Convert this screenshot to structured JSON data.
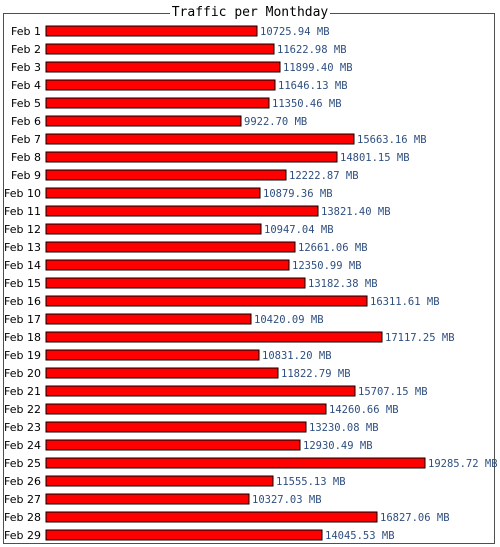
{
  "chart_data": {
    "type": "bar",
    "orientation": "horizontal",
    "title": "Traffic per Monthday",
    "unit": "MB",
    "categories": [
      "Feb 1",
      "Feb 2",
      "Feb 3",
      "Feb 4",
      "Feb 5",
      "Feb 6",
      "Feb 7",
      "Feb 8",
      "Feb 9",
      "Feb 10",
      "Feb 11",
      "Feb 12",
      "Feb 13",
      "Feb 14",
      "Feb 15",
      "Feb 16",
      "Feb 17",
      "Feb 18",
      "Feb 19",
      "Feb 20",
      "Feb 21",
      "Feb 22",
      "Feb 23",
      "Feb 24",
      "Feb 25",
      "Feb 26",
      "Feb 27",
      "Feb 28",
      "Feb 29"
    ],
    "values": [
      10725.94,
      11622.98,
      11899.4,
      11646.13,
      11350.46,
      9922.7,
      15663.16,
      14801.15,
      12222.87,
      10879.36,
      13821.4,
      10947.04,
      12661.06,
      12350.99,
      13182.38,
      16311.61,
      10420.09,
      17117.25,
      10831.2,
      11822.79,
      15707.15,
      14260.66,
      13230.08,
      12930.49,
      19285.72,
      11555.13,
      10327.03,
      16827.06,
      14045.53
    ],
    "value_labels": [
      "10725.94 MB",
      "11622.98 MB",
      "11899.40 MB",
      "11646.13 MB",
      "11350.46 MB",
      "9922.70 MB",
      "15663.16 MB",
      "14801.15 MB",
      "12222.87 MB",
      "10879.36 MB",
      "13821.40 MB",
      "10947.04 MB",
      "12661.06 MB",
      "12350.99 MB",
      "13182.38 MB",
      "16311.61 MB",
      "10420.09 MB",
      "17117.25 MB",
      "10831.20 MB",
      "11822.79 MB",
      "15707.15 MB",
      "14260.66 MB",
      "13230.08 MB",
      "12930.49 MB",
      "19285.72 MB",
      "11555.13 MB",
      "10327.03 MB",
      "16827.06 MB",
      "14045.53 MB"
    ],
    "xlim": [
      0,
      19285.72
    ],
    "grid": false,
    "legend": "none",
    "colors": {
      "bar": "#ff0000",
      "bar_border": "#000000",
      "value_text": "#2f4f7f",
      "frame": "#4f4f4f"
    }
  }
}
